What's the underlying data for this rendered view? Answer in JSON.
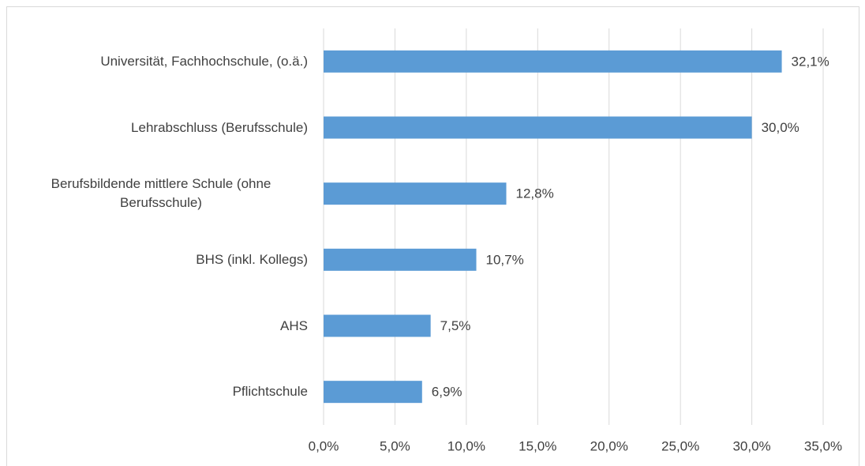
{
  "chart_data": {
    "type": "bar",
    "orientation": "horizontal",
    "categories": [
      "Universität, Fachhochschule, (o.ä.)",
      "Lehrabschluss (Berufsschule)",
      "Berufsbildende mittlere Schule (ohne Berufsschule)",
      "BHS (inkl. Kollegs)",
      "AHS",
      "Pflichtschule"
    ],
    "values": [
      32.1,
      30.0,
      12.8,
      10.7,
      7.5,
      6.9
    ],
    "value_labels": [
      "32,1%",
      "30,0%",
      "12,8%",
      "10,7%",
      "7,5%",
      "6,9%"
    ],
    "color": "#5b9bd5",
    "xlim": [
      0,
      35
    ],
    "xticks": [
      {
        "value": 0,
        "label": "0,0%"
      },
      {
        "value": 5,
        "label": "5,0%"
      },
      {
        "value": 10,
        "label": "10,0%"
      },
      {
        "value": 15,
        "label": "15,0%"
      },
      {
        "value": 20,
        "label": "20,0%"
      },
      {
        "value": 25,
        "label": "25,0%"
      },
      {
        "value": 30,
        "label": "30,0%"
      },
      {
        "value": 35,
        "label": "35,0%"
      }
    ],
    "grid": true
  }
}
